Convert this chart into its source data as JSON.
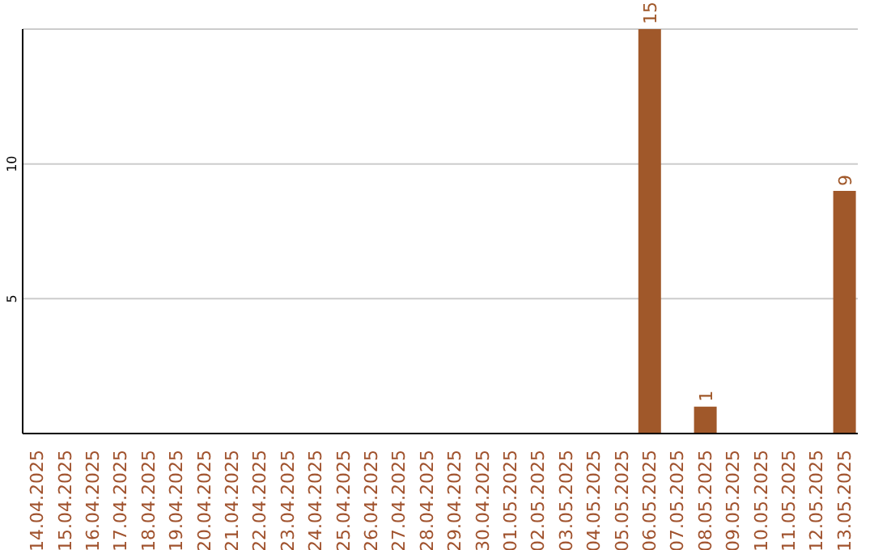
{
  "chart_data": {
    "type": "bar",
    "categories": [
      "14.04.2025",
      "15.04.2025",
      "16.04.2025",
      "17.04.2025",
      "18.04.2025",
      "19.04.2025",
      "20.04.2025",
      "21.04.2025",
      "22.04.2025",
      "23.04.2025",
      "24.04.2025",
      "25.04.2025",
      "26.04.2025",
      "27.04.2025",
      "28.04.2025",
      "29.04.2025",
      "30.04.2025",
      "01.05.2025",
      "02.05.2025",
      "03.05.2025",
      "04.05.2025",
      "05.05.2025",
      "06.05.2025",
      "07.05.2025",
      "08.05.2025",
      "09.05.2025",
      "10.05.2025",
      "11.05.2025",
      "12.05.2025",
      "13.05.2025"
    ],
    "values": [
      0,
      0,
      0,
      0,
      0,
      0,
      0,
      0,
      0,
      0,
      0,
      0,
      0,
      0,
      0,
      0,
      0,
      0,
      0,
      0,
      0,
      0,
      15,
      0,
      1,
      0,
      0,
      0,
      0,
      9
    ],
    "value_labels": [
      null,
      null,
      null,
      null,
      null,
      null,
      null,
      null,
      null,
      null,
      null,
      null,
      null,
      null,
      null,
      null,
      null,
      null,
      null,
      null,
      null,
      null,
      "15",
      null,
      "1",
      null,
      null,
      null,
      null,
      "9"
    ],
    "color": "#a0582a",
    "ylim": [
      0,
      15
    ],
    "yticks": [
      5,
      10
    ],
    "grid": "y"
  }
}
